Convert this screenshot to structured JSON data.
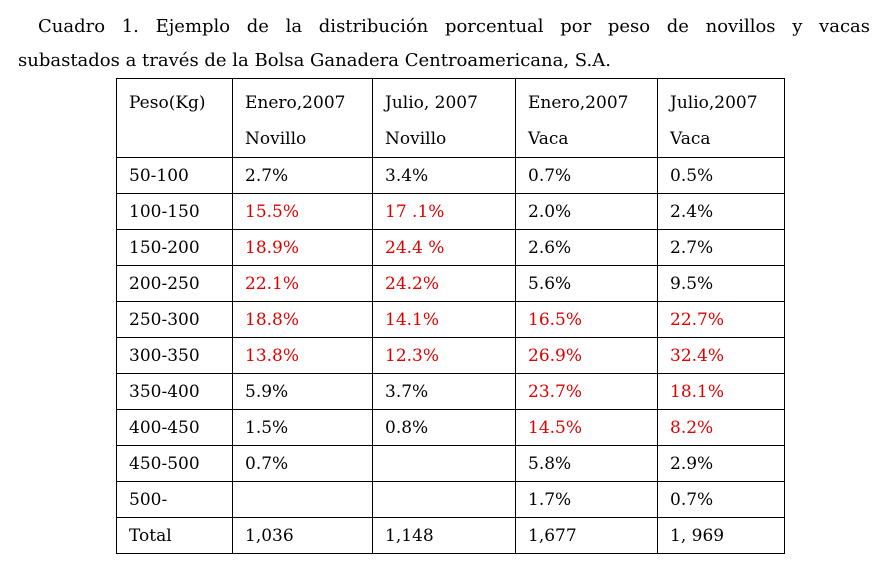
{
  "caption": {
    "line1": "Cuadro 1. Ejemplo de la distribución porcentual por peso de novillos y vacas",
    "line2": "subastados a través de la Bolsa Ganadera Centroamericana, S.A."
  },
  "table": {
    "headers": [
      {
        "top": "Peso(Kg)",
        "bottom": ""
      },
      {
        "top": "Enero,2007",
        "bottom": "Novillo"
      },
      {
        "top": "Julio, 2007",
        "bottom": "Novillo"
      },
      {
        "top": "Enero,2007",
        "bottom": "Vaca"
      },
      {
        "top": "Julio,2007",
        "bottom": "Vaca"
      }
    ],
    "rows": [
      [
        "50-100",
        "2.7%",
        "3.4%",
        "0.7%",
        "0.5%"
      ],
      [
        "100-150",
        "15.5%",
        "17 .1%",
        "2.0%",
        "2.4%"
      ],
      [
        "150-200",
        "18.9%",
        "24.4 %",
        "2.6%",
        "2.7%"
      ],
      [
        "200-250",
        "22.1%",
        "24.2%",
        "5.6%",
        "9.5%"
      ],
      [
        "250-300",
        "18.8%",
        "14.1%",
        "16.5%",
        "22.7%"
      ],
      [
        "300-350",
        "13.8%",
        "12.3%",
        "26.9%",
        "32.4%"
      ],
      [
        "350-400",
        "5.9%",
        "3.7%",
        "23.7%",
        "18.1%"
      ],
      [
        "400-450",
        "1.5%",
        "0.8%",
        "14.5%",
        "8.2%"
      ],
      [
        "450-500",
        "0.7%",
        "",
        "5.8%",
        "2.9%"
      ],
      [
        "500-",
        "",
        "",
        "1.7%",
        "0.7%"
      ],
      [
        "Total",
        "1,036",
        "1,148",
        "1,677",
        "1, 969"
      ]
    ],
    "highlight_color": "#e00000",
    "text_color": "#000000"
  }
}
